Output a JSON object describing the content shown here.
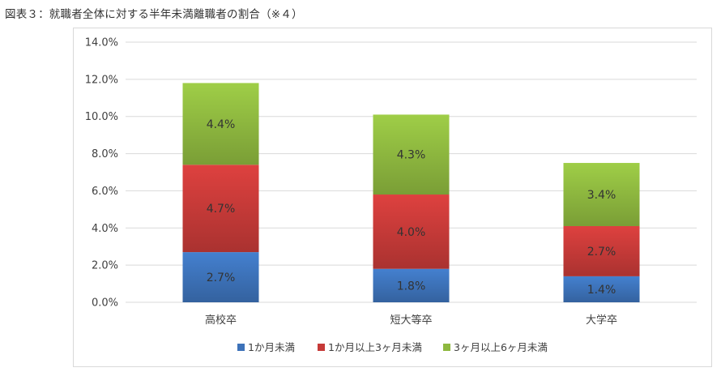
{
  "figure": {
    "title": "図表３：就職者全体に対する半年未満離職者の割合（※４）"
  },
  "colors": {
    "series_1": "#3d72b9",
    "series_2": "#c63a38",
    "series_3": "#8eb83f",
    "grid": "#d9d9d9",
    "frame": "#d9d9d9"
  },
  "chart_data": {
    "type": "bar",
    "stacked": true,
    "categories": [
      "高校卒",
      "短大等卒",
      "大学卒"
    ],
    "series": [
      {
        "name": "1か月未満",
        "values": [
          2.7,
          1.8,
          1.4
        ],
        "labels": [
          "2.7%",
          "1.8%",
          "1.4%"
        ],
        "color": "#3d72b9"
      },
      {
        "name": "1か月以上3ヶ月未満",
        "values": [
          4.7,
          4.0,
          2.7
        ],
        "labels": [
          "4.7%",
          "4.0%",
          "2.7%"
        ],
        "color": "#c63a38"
      },
      {
        "name": "3ヶ月以上6ヶ月未満",
        "values": [
          4.4,
          4.3,
          3.4
        ],
        "labels": [
          "4.4%",
          "4.3%",
          "3.4%"
        ],
        "color": "#8eb83f"
      }
    ],
    "ylim": [
      0,
      14
    ],
    "yticks": [
      0,
      2,
      4,
      6,
      8,
      10,
      12,
      14
    ],
    "ytick_labels": [
      "0.0%",
      "2.0%",
      "4.0%",
      "6.0%",
      "8.0%",
      "10.0%",
      "12.0%",
      "14.0%"
    ],
    "grid": true,
    "legend_position": "bottom",
    "xlabel": "",
    "ylabel": ""
  }
}
